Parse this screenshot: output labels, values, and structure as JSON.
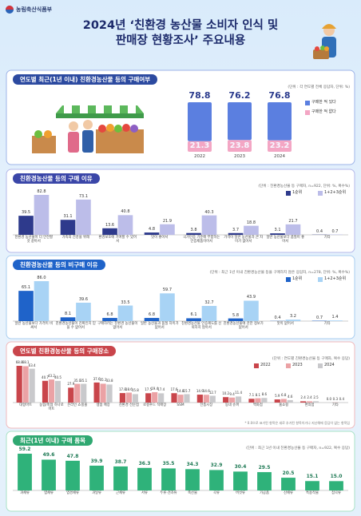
{
  "header": {
    "org": "농림축산식품부",
    "title": [
      "2024년 ‘친환경 농산물 소비자 인식 및",
      "판매장 현황조사’ 주요내용"
    ]
  },
  "chart_data": [
    {
      "type": "stacked-bar",
      "title": "연도별 최근(1년 이내) 친환경농산물 등의 구매여부",
      "subtitle": "(단위 : 각 연도별 전체 응답자, 단위: %)",
      "categories": [
        "2022",
        "2023",
        "2024"
      ],
      "series": [
        {
          "name": "구매한 적 있다",
          "color": "#5b7fe0",
          "values": [
            78.8,
            76.2,
            76.8
          ]
        },
        {
          "name": "구매한 적 없다",
          "color": "#f3a6c4",
          "values": [
            21.3,
            23.8,
            23.2
          ]
        }
      ]
    },
    {
      "type": "bar",
      "title": "친환경농산물 등의 구매 이유",
      "subtitle": "(단위 : 친환경농산물 등 구매자, n=922, 단위: %, 복수%)",
      "categories": [
        "친환경 농산물이 더 안전할 것 같아서",
        "가족의 건강을 위해",
        "환경보호에 기여할 수 있어서",
        "맛이 좋아서",
        "국가인증 기준에 부합하는 인증제품이어서",
        "가격이 일반 농산물과 큰 차이가 없어서",
        "일반 농산물보다 품질이 좋아서",
        "기타"
      ],
      "series": [
        {
          "name": "1순위",
          "color": "#2e3a8c",
          "values": [
            39.5,
            31.1,
            13.6,
            4.8,
            3.8,
            3.7,
            3.1,
            0.4
          ]
        },
        {
          "name": "1+2+3순위",
          "color": "#bcbde9",
          "values": [
            82.8,
            73.1,
            40.8,
            21.9,
            40.3,
            18.8,
            21.7,
            0.7
          ]
        }
      ]
    },
    {
      "type": "bar",
      "title": "친환경농산물 등의 비구매 이유",
      "subtitle": "(단위 : 최근 1년 이내 친환경농산물 등을 구매하지 않은 응답자, n=278, 단위: %, 복수%)",
      "categories": [
        "일반 농산물보다 가격이 비싸서",
        "친환경농산물이 진짜인지 믿을 수 없어서",
        "구매하려는 친환경 농산물이 없어서",
        "일반 농산물과 품질 차이가 없어서",
        "친환경농산물 인증제도를 신뢰하지 않아서",
        "친환경농산물에 관한 정보가 없어서",
        "맛이 없어서",
        "기타"
      ],
      "series": [
        {
          "name": "1순위",
          "color": "#1f63c9",
          "values": [
            65.1,
            8.1,
            6.8,
            6.8,
            6.1,
            5.8,
            0.4,
            0.7
          ]
        },
        {
          "name": "1+2+3순위",
          "color": "#a8d3f5",
          "values": [
            86.0,
            39.6,
            33.5,
            59.7,
            32.7,
            43.9,
            3.2,
            1.4
          ],
          "value_labels": [
            "86.0",
            "39.6",
            "33.5",
            "59.7",
            "32.7",
            "43.9",
            "3.2",
            "1.4"
          ]
        }
      ]
    },
    {
      "type": "bar",
      "title": "연도별 친환경농산물 등의 구매장소",
      "subtitle": "(단위 : 연도별 친환경농산물 등 구매자, 복수 응답)",
      "note": "* 0.0으로 표기된 항목은 새로 추가된 항목이거나 지난해에 응답이 없는 항목임",
      "categories": [
        "대형마트",
        "농협/축협 하나로마트",
        "온라인 쇼핑몰",
        "생협 매장",
        "친환경 전문점",
        "로컬푸드 직매장",
        "SSM",
        "전통시장",
        "동네 슈퍼",
        "백화점",
        "홈쇼핑",
        "편의점",
        "기타"
      ],
      "series": [
        {
          "name": "2022",
          "color": "#c9454b",
          "values": [
            68.8,
            40.7,
            27.9,
            37.6,
            17.8,
            17.5,
            17.6,
            14.9,
            10.2,
            7.1,
            5.9,
            2.4,
            0.0
          ],
          "value_labels": [
            "68.8",
            "40.7",
            "27.9",
            "37.6",
            "17.8",
            "17.5",
            "17.6",
            "14.9",
            "10.2",
            "7.1",
            "5.9",
            "2.4",
            "0.0"
          ]
        },
        {
          "name": "2023",
          "color": "#eba2a5",
          "values": [
            68.1,
            43.2,
            35.0,
            35.3,
            18.6,
            19.4,
            14.8,
            14.6,
            9.4,
            8.1,
            6.8,
            2.4,
            0.3
          ],
          "value_labels": [
            "68.1",
            "43.2",
            "35.0",
            "35.3",
            "18.6",
            "19.4",
            "14.8",
            "14.6",
            "9.4",
            "8.1",
            "6.8",
            "2.4",
            "0.3"
          ]
        },
        {
          "name": "2024",
          "color": "#c9c9cc",
          "values": [
            63.4,
            40.5,
            35.1,
            33.8,
            15.8,
            17.4,
            15.7,
            12.7,
            11.4,
            8.6,
            4.6,
            2.5,
            0.4
          ]
        }
      ]
    },
    {
      "type": "bar",
      "title": "최근(1년 이내) 구매 품목",
      "subtitle": "(단위 : 최근 1년 이내 친환경농산물 등 구매자, n=922, 복수 응답)",
      "categories": [
        "과채류",
        "엽채류",
        "엽경채류",
        "과일류",
        "근채류",
        "서류",
        "두류·견과류",
        "축산물",
        "곡류",
        "버섯류",
        "가공품",
        "산채류",
        "특용작물",
        "잡곡류"
      ],
      "color": "#2fb27a",
      "values": [
        59.2,
        49.6,
        47.8,
        39.9,
        38.7,
        36.3,
        35.5,
        34.3,
        32.9,
        30.4,
        29.5,
        20.5,
        15.1,
        15.0
      ],
      "value_labels": [
        "59.2",
        "49.6",
        "47.8",
        "39.9",
        "38.7",
        "36.3",
        "35.5",
        "34.3",
        "32.9",
        "30.4",
        "29.5",
        "20.5",
        "15.1",
        "15.0"
      ]
    }
  ]
}
